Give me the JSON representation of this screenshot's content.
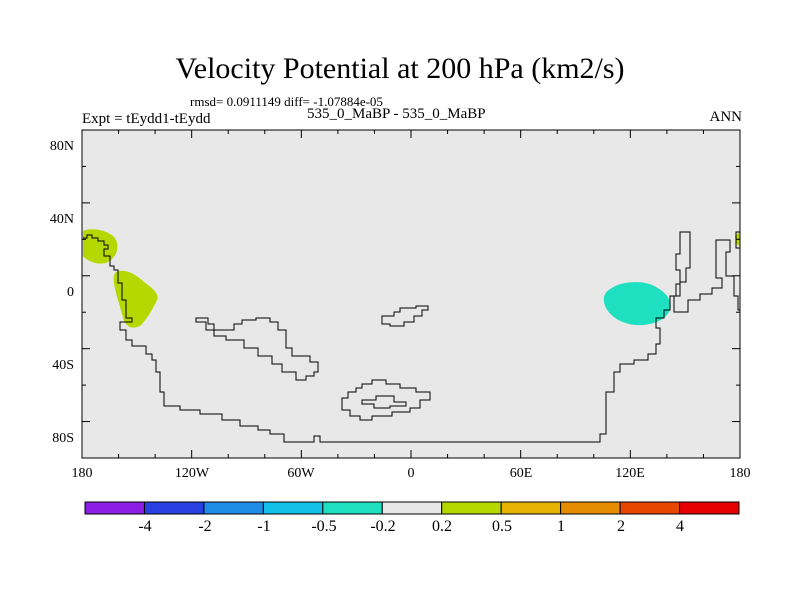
{
  "title": "Velocity Potential at 200 hPa (km2/s)",
  "stats": "rmsd= 0.0911149 diff= -1.07884e-05",
  "experiment": "Expt = tEydd1-tEydd",
  "case_label": "535_0_MaBP - 535_0_MaBP",
  "season": "ANN",
  "map": {
    "background_color": "#e8e8e8",
    "lat_labels": [
      "80N",
      "40N",
      "0",
      "40S",
      "80S"
    ],
    "lon_labels": [
      "180",
      "120W",
      "60W",
      "0",
      "60E",
      "120E",
      "180"
    ],
    "anomaly_colors": {
      "positive": "#b4d800",
      "negative": "#1ee0c0"
    }
  },
  "colorbar": {
    "colors": [
      "#8c1ee6",
      "#2840e0",
      "#1e8ce6",
      "#14c0e6",
      "#1ee0c0",
      "#e8e8e8",
      "#b4d800",
      "#e6b400",
      "#e68c00",
      "#e64600",
      "#e60000"
    ],
    "labels": [
      "-4",
      "-2",
      "-1",
      "-0.5",
      "-0.2",
      "0.2",
      "0.5",
      "1",
      "2",
      "4"
    ]
  }
}
